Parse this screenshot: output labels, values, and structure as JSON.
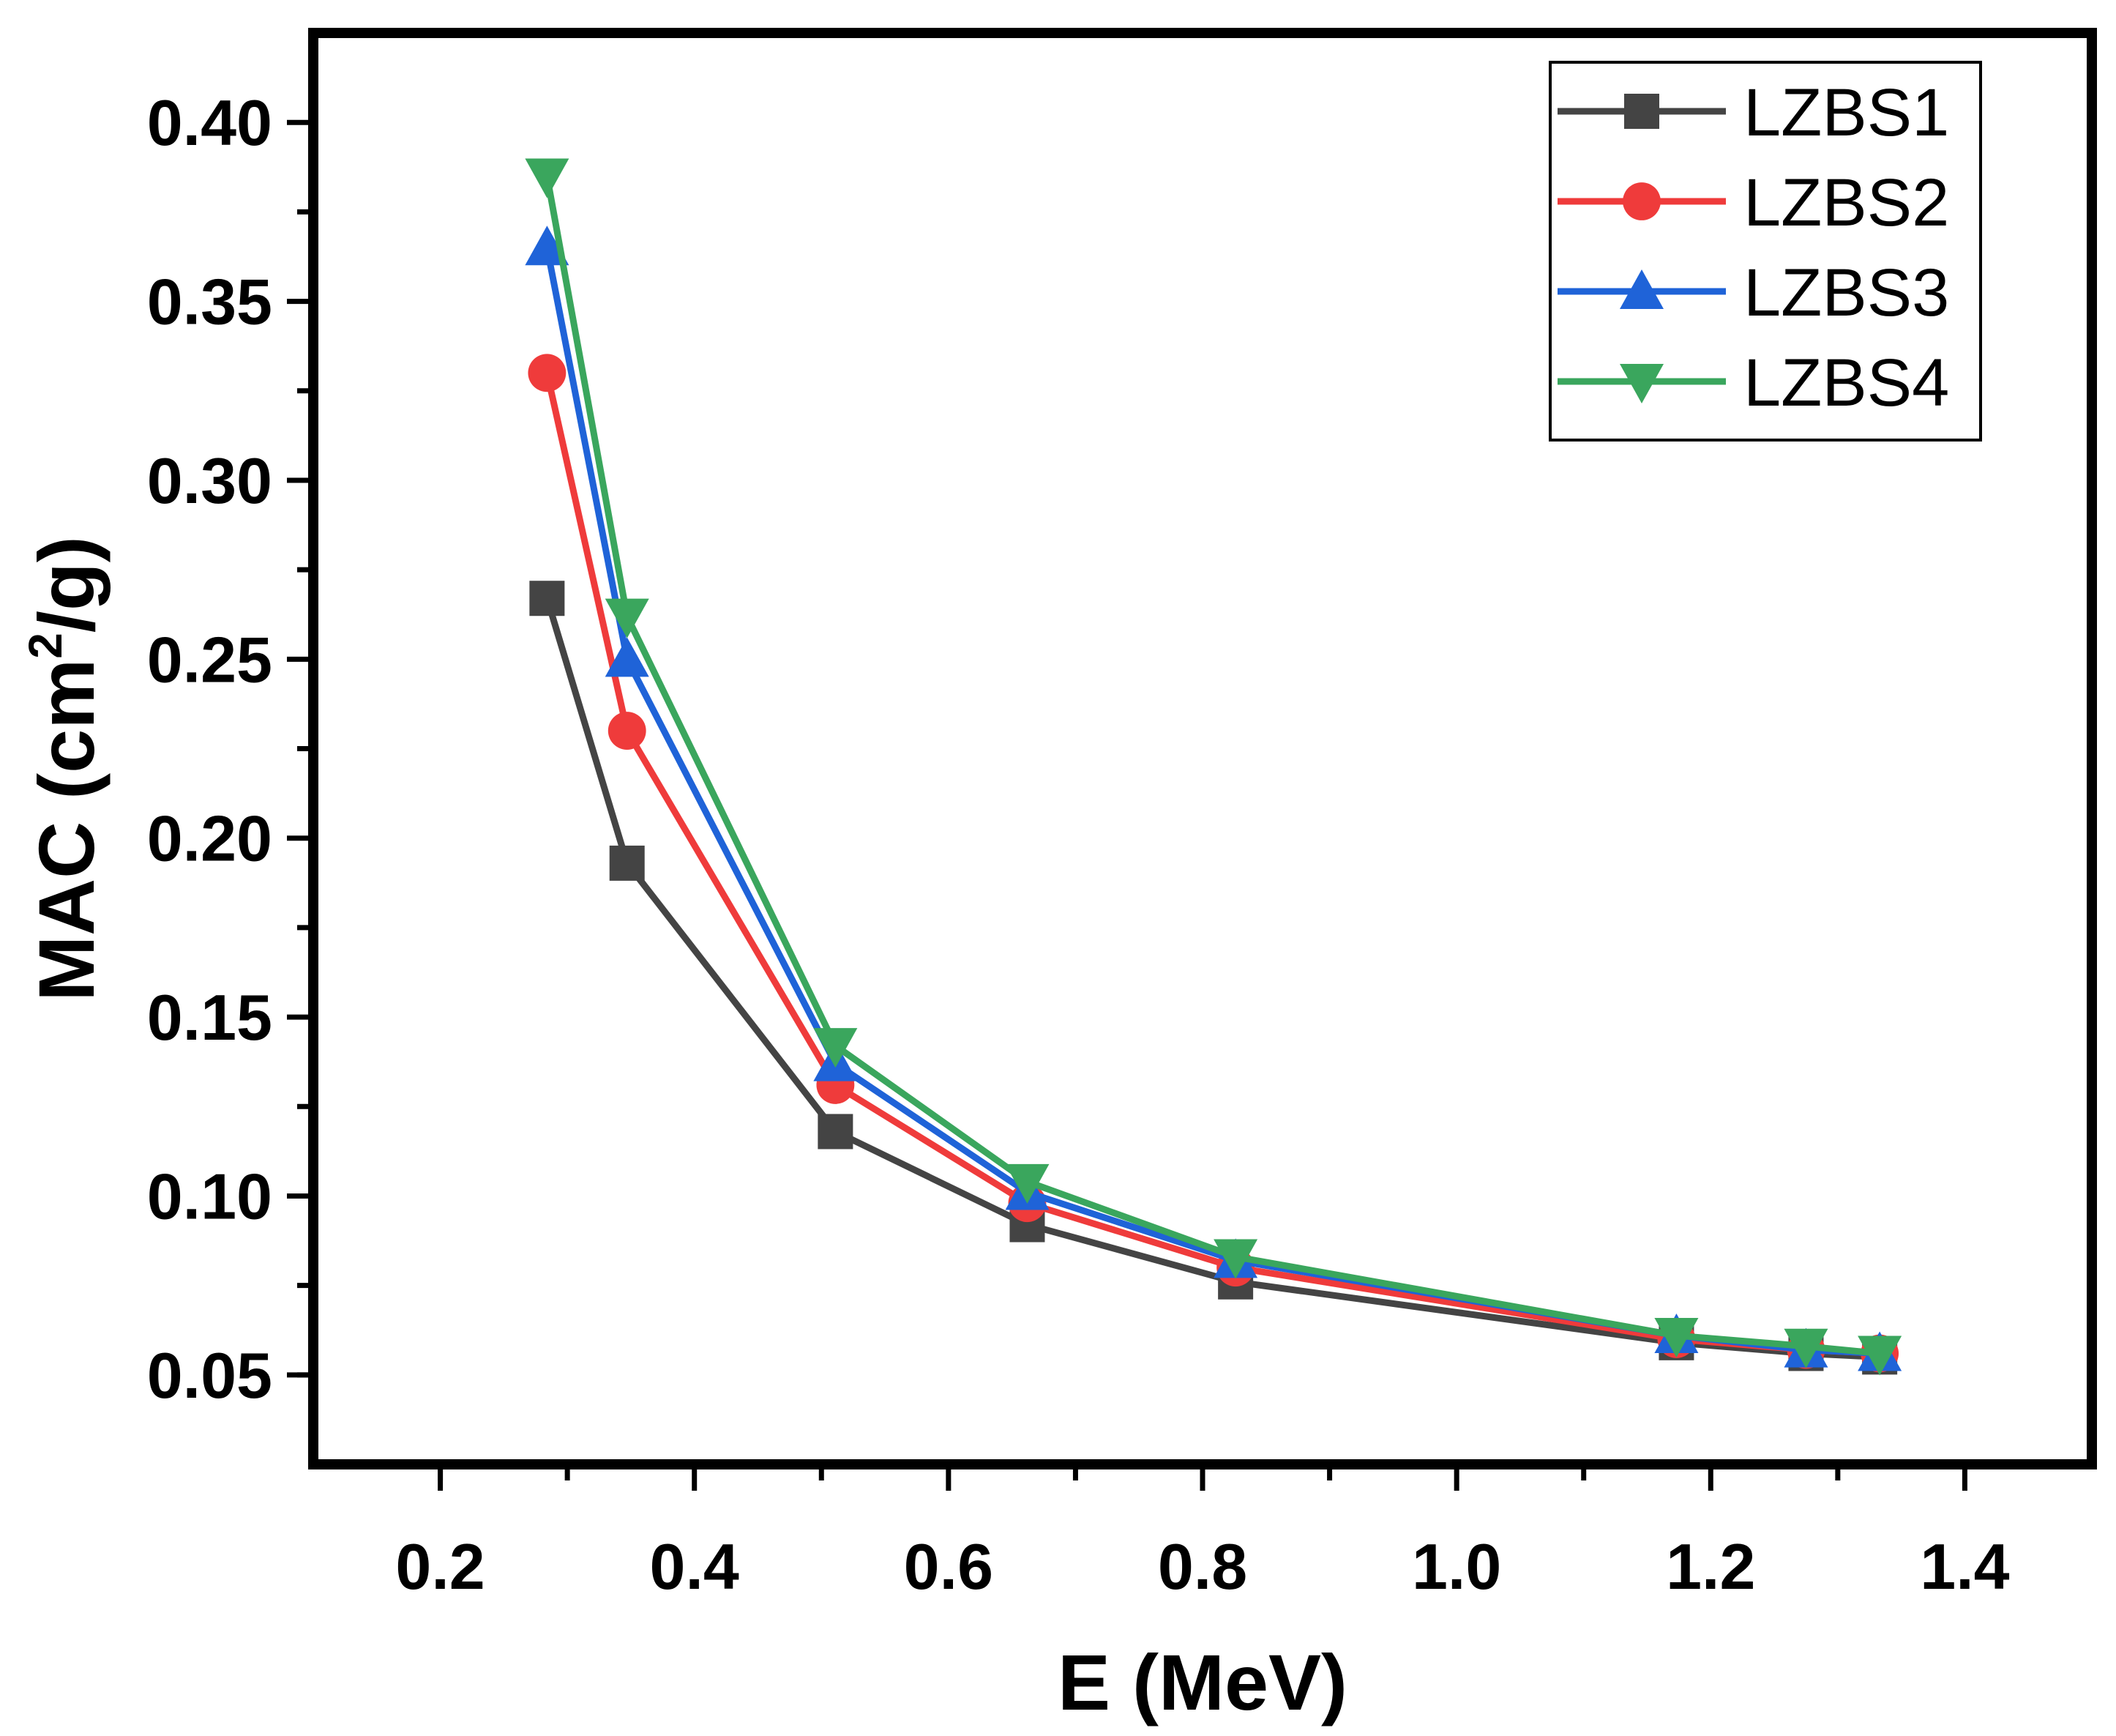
{
  "chart_data": {
    "type": "line",
    "title": "",
    "xlabel": "E (MeV)",
    "ylabel_main": "MAC (cm",
    "ylabel_sup": "2",
    "ylabel_tail": "/g)",
    "xlim": [
      0.1,
      1.5
    ],
    "ylim": [
      0.025,
      0.425
    ],
    "xticks": [
      0.2,
      0.4,
      0.6,
      0.8,
      1.0,
      1.2,
      1.4
    ],
    "xtick_labels": [
      "0.2",
      "0.4",
      "0.6",
      "0.8",
      "1.0",
      "1.2",
      "1.4"
    ],
    "yticks": [
      0.05,
      0.1,
      0.15,
      0.2,
      0.25,
      0.3,
      0.35,
      0.4
    ],
    "ytick_labels": [
      "0.05",
      "0.10",
      "0.15",
      "0.20",
      "0.25",
      "0.30",
      "0.35",
      "0.40"
    ],
    "grid": false,
    "legend_position": "top-right",
    "x": [
      0.284,
      0.347,
      0.511,
      0.662,
      0.826,
      1.173,
      1.275,
      1.333
    ],
    "series": [
      {
        "name": "LZBS1",
        "color": "#444444",
        "marker": "square",
        "values": [
          0.267,
          0.193,
          0.118,
          0.092,
          0.076,
          0.059,
          0.056,
          0.055
        ]
      },
      {
        "name": "LZBS2",
        "color": "#ef3b3b",
        "marker": "circle",
        "values": [
          0.33,
          0.23,
          0.131,
          0.098,
          0.08,
          0.06,
          0.057,
          0.056
        ]
      },
      {
        "name": "LZBS3",
        "color": "#1f63d8",
        "marker": "triangle-up",
        "values": [
          0.365,
          0.25,
          0.137,
          0.101,
          0.082,
          0.061,
          0.057,
          0.056
        ]
      },
      {
        "name": "LZBS4",
        "color": "#3aa65d",
        "marker": "triangle-down",
        "values": [
          0.385,
          0.262,
          0.142,
          0.104,
          0.083,
          0.061,
          0.058,
          0.056
        ]
      }
    ]
  }
}
